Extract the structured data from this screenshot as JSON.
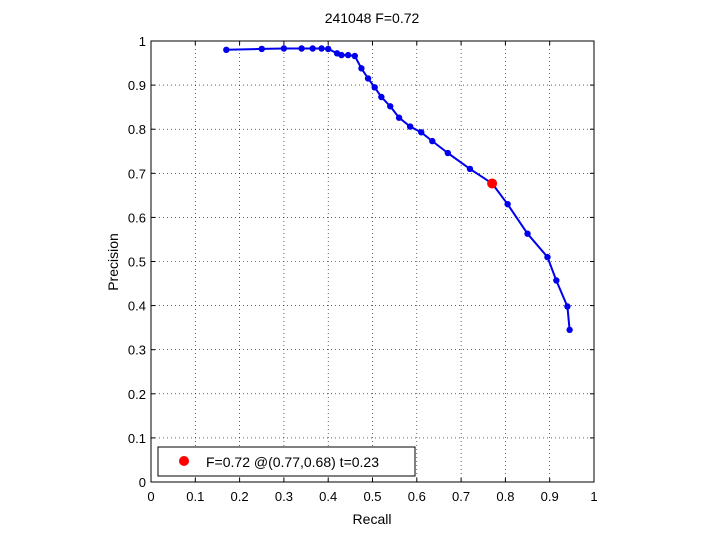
{
  "chart_data": {
    "type": "line",
    "title": "241048 F=0.72",
    "xlabel": "Recall",
    "ylabel": "Precision",
    "xlim": [
      0,
      1
    ],
    "ylim": [
      0,
      1
    ],
    "xticks": [
      0,
      0.1,
      0.2,
      0.3,
      0.4,
      0.5,
      0.6,
      0.7,
      0.8,
      0.9,
      1
    ],
    "xtick_labels": [
      "0",
      "0.1",
      "0.2",
      "0.3",
      "0.4",
      "0.5",
      "0.6",
      "0.7",
      "0.8",
      "0.9",
      "1"
    ],
    "yticks": [
      0,
      0.1,
      0.2,
      0.3,
      0.4,
      0.5,
      0.6,
      0.7,
      0.8,
      0.9,
      1
    ],
    "ytick_labels": [
      "0",
      "0.1",
      "0.2",
      "0.3",
      "0.4",
      "0.5",
      "0.6",
      "0.7",
      "0.8",
      "0.9",
      "1"
    ],
    "grid": true,
    "grid_style": "dotted",
    "legend_position": "bottom-left",
    "series": [
      {
        "color": "#0000ee",
        "marker": "dot",
        "x": [
          0.17,
          0.25,
          0.3,
          0.34,
          0.365,
          0.385,
          0.4,
          0.42,
          0.43,
          0.445,
          0.46,
          0.475,
          0.49,
          0.505,
          0.52,
          0.54,
          0.56,
          0.585,
          0.61,
          0.635,
          0.67,
          0.72,
          0.77,
          0.805,
          0.85,
          0.895,
          0.915,
          0.94,
          0.945
        ],
        "y": [
          0.98,
          0.982,
          0.983,
          0.983,
          0.983,
          0.983,
          0.982,
          0.972,
          0.968,
          0.968,
          0.966,
          0.938,
          0.915,
          0.895,
          0.873,
          0.852,
          0.826,
          0.806,
          0.793,
          0.773,
          0.746,
          0.71,
          0.677,
          0.63,
          0.563,
          0.51,
          0.457,
          0.398,
          0.345
        ]
      }
    ],
    "best_point": {
      "x": 0.77,
      "y": 0.677,
      "color": "#ff0000"
    },
    "legend": {
      "marker_color": "#ff0000",
      "label": "F=0.72 @(0.77,0.68) t=0.23"
    }
  }
}
